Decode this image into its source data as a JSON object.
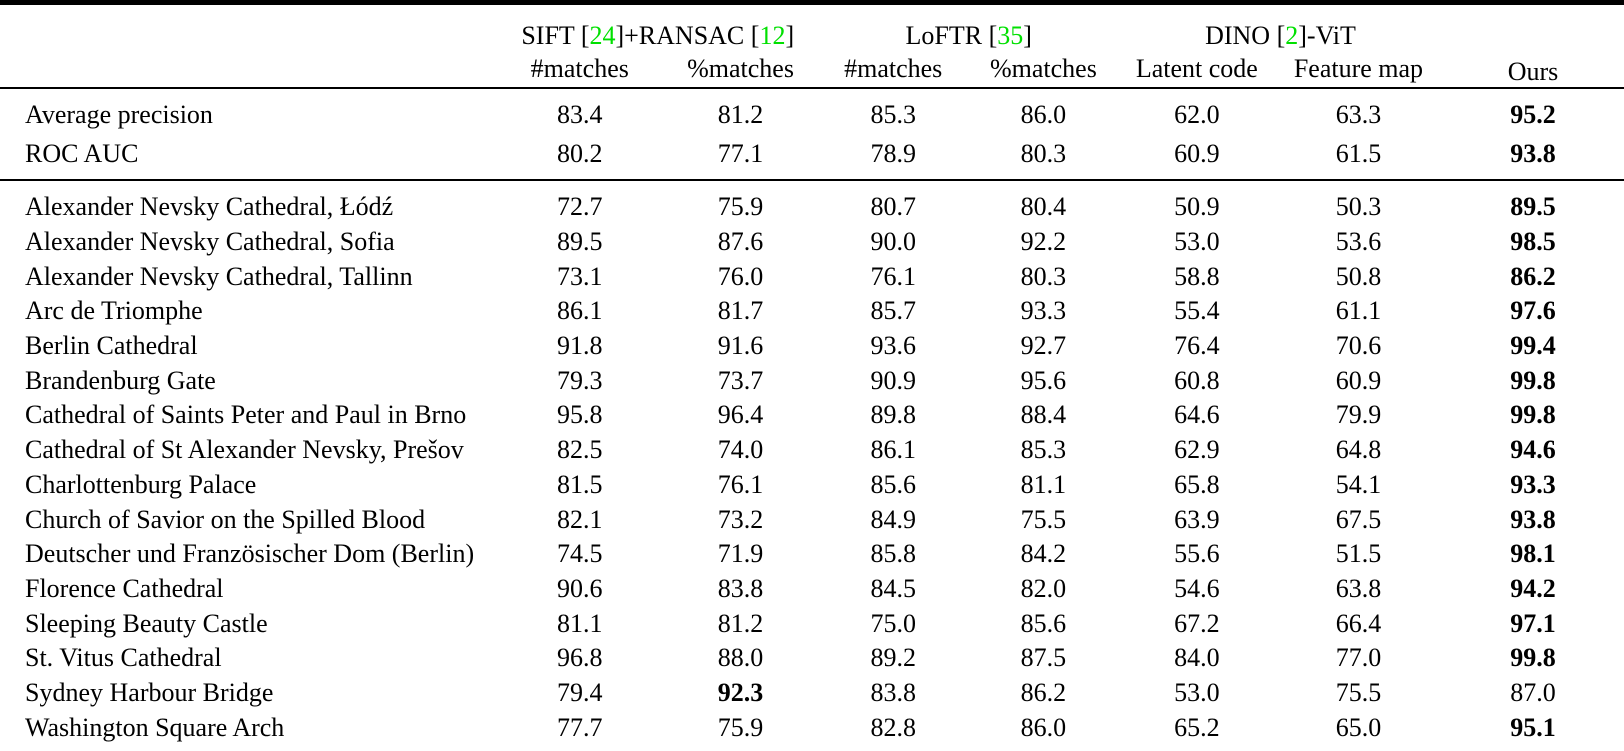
{
  "page": {
    "background_color": "#ffffff",
    "text_color": "#000000",
    "citation_color": "#00e000"
  },
  "table": {
    "ours_header": "Ours",
    "column_groups": [
      {
        "title_parts": [
          "SIFT [",
          "24",
          "]+RANSAC [",
          "12",
          "]"
        ],
        "columns": [
          "#matches",
          "%matches"
        ]
      },
      {
        "title_parts": [
          "LoFTR [",
          "35",
          "]"
        ],
        "columns": [
          "#matches",
          "%matches"
        ]
      },
      {
        "title_parts": [
          "DINO [",
          "2",
          "]-ViT"
        ],
        "columns": [
          "Latent code",
          "Feature map"
        ]
      }
    ],
    "summary_rows": [
      {
        "label": "Average precision",
        "values": [
          "83.4",
          "81.2",
          "85.3",
          "86.0",
          "62.0",
          "63.3",
          "95.2"
        ],
        "bold_indices": [
          6
        ]
      },
      {
        "label": "ROC AUC",
        "values": [
          "80.2",
          "77.1",
          "78.9",
          "80.3",
          "60.9",
          "61.5",
          "93.8"
        ],
        "bold_indices": [
          6
        ]
      }
    ],
    "landmark_rows": [
      {
        "label": "Alexander Nevsky Cathedral, Łódź",
        "values": [
          "72.7",
          "75.9",
          "80.7",
          "80.4",
          "50.9",
          "50.3",
          "89.5"
        ],
        "bold_indices": [
          6
        ]
      },
      {
        "label": "Alexander Nevsky Cathedral, Sofia",
        "values": [
          "89.5",
          "87.6",
          "90.0",
          "92.2",
          "53.0",
          "53.6",
          "98.5"
        ],
        "bold_indices": [
          6
        ]
      },
      {
        "label": "Alexander Nevsky Cathedral, Tallinn",
        "values": [
          "73.1",
          "76.0",
          "76.1",
          "80.3",
          "58.8",
          "50.8",
          "86.2"
        ],
        "bold_indices": [
          6
        ]
      },
      {
        "label": "Arc de Triomphe",
        "values": [
          "86.1",
          "81.7",
          "85.7",
          "93.3",
          "55.4",
          "61.1",
          "97.6"
        ],
        "bold_indices": [
          6
        ]
      },
      {
        "label": "Berlin Cathedral",
        "values": [
          "91.8",
          "91.6",
          "93.6",
          "92.7",
          "76.4",
          "70.6",
          "99.4"
        ],
        "bold_indices": [
          6
        ]
      },
      {
        "label": "Brandenburg Gate",
        "values": [
          "79.3",
          "73.7",
          "90.9",
          "95.6",
          "60.8",
          "60.9",
          "99.8"
        ],
        "bold_indices": [
          6
        ]
      },
      {
        "label": "Cathedral of Saints Peter and Paul in Brno",
        "values": [
          "95.8",
          "96.4",
          "89.8",
          "88.4",
          "64.6",
          "79.9",
          "99.8"
        ],
        "bold_indices": [
          6
        ]
      },
      {
        "label": "Cathedral of St Alexander Nevsky, Prešov",
        "values": [
          "82.5",
          "74.0",
          "86.1",
          "85.3",
          "62.9",
          "64.8",
          "94.6"
        ],
        "bold_indices": [
          6
        ]
      },
      {
        "label": "Charlottenburg Palace",
        "values": [
          "81.5",
          "76.1",
          "85.6",
          "81.1",
          "65.8",
          "54.1",
          "93.3"
        ],
        "bold_indices": [
          6
        ]
      },
      {
        "label": "Church of Savior on the Spilled Blood",
        "values": [
          "82.1",
          "73.2",
          "84.9",
          "75.5",
          "63.9",
          "67.5",
          "93.8"
        ],
        "bold_indices": [
          6
        ]
      },
      {
        "label": "Deutscher und Französischer Dom (Berlin)",
        "values": [
          "74.5",
          "71.9",
          "85.8",
          "84.2",
          "55.6",
          "51.5",
          "98.1"
        ],
        "bold_indices": [
          6
        ]
      },
      {
        "label": "Florence Cathedral",
        "values": [
          "90.6",
          "83.8",
          "84.5",
          "82.0",
          "54.6",
          "63.8",
          "94.2"
        ],
        "bold_indices": [
          6
        ]
      },
      {
        "label": "Sleeping Beauty Castle",
        "values": [
          "81.1",
          "81.2",
          "75.0",
          "85.6",
          "67.2",
          "66.4",
          "97.1"
        ],
        "bold_indices": [
          6
        ]
      },
      {
        "label": "St. Vitus Cathedral",
        "values": [
          "96.8",
          "88.0",
          "89.2",
          "87.5",
          "84.0",
          "77.0",
          "99.8"
        ],
        "bold_indices": [
          6
        ]
      },
      {
        "label": "Sydney Harbour Bridge",
        "values": [
          "79.4",
          "92.3",
          "83.8",
          "86.2",
          "53.0",
          "75.5",
          "87.0"
        ],
        "bold_indices": [
          1
        ]
      },
      {
        "label": "Washington Square Arch",
        "values": [
          "77.7",
          "75.9",
          "82.8",
          "86.0",
          "65.2",
          "65.0",
          "95.1"
        ],
        "bold_indices": [
          6
        ]
      }
    ]
  }
}
